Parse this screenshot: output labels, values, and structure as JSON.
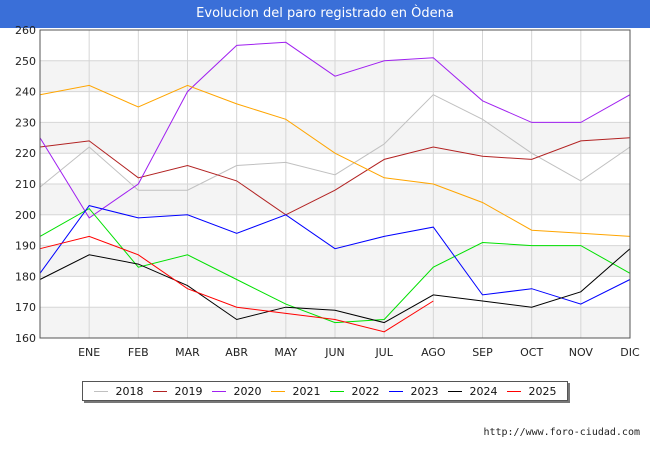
{
  "title": "Evolucion del paro registrado en Òdena",
  "footer_url": "http://www.foro-ciudad.com",
  "chart_data": {
    "type": "line",
    "categories": [
      "",
      "ENE",
      "FEB",
      "MAR",
      "ABR",
      "MAY",
      "JUN",
      "JUL",
      "AGO",
      "SEP",
      "OCT",
      "NOV",
      "DIC"
    ],
    "ylim": [
      160,
      260
    ],
    "yticks": [
      160,
      170,
      180,
      190,
      200,
      210,
      220,
      230,
      240,
      250,
      260
    ],
    "grid": true,
    "legend_position": "bottom",
    "series": [
      {
        "name": "2018",
        "color": "#c0c0c0",
        "values": [
          209,
          222,
          208,
          208,
          216,
          217,
          213,
          223,
          239,
          231,
          220,
          211,
          222
        ]
      },
      {
        "name": "2019",
        "color": "#b22222",
        "values": [
          222,
          224,
          212,
          216,
          211,
          200,
          208,
          218,
          222,
          219,
          218,
          224,
          225
        ]
      },
      {
        "name": "2020",
        "color": "#a020f0",
        "values": [
          225,
          199,
          210,
          240,
          255,
          256,
          245,
          250,
          251,
          237,
          230,
          230,
          239
        ]
      },
      {
        "name": "2021",
        "color": "#ffa500",
        "values": [
          239,
          242,
          235,
          242,
          236,
          231,
          220,
          212,
          210,
          204,
          195,
          194,
          193
        ]
      },
      {
        "name": "2022",
        "color": "#00e000",
        "values": [
          193,
          202,
          183,
          187,
          179,
          171,
          165,
          166,
          183,
          191,
          190,
          190,
          181
        ]
      },
      {
        "name": "2023",
        "color": "#0000ff",
        "values": [
          181,
          203,
          199,
          200,
          194,
          200,
          189,
          193,
          196,
          174,
          176,
          171,
          179
        ]
      },
      {
        "name": "2024",
        "color": "#000000",
        "values": [
          179,
          187,
          184,
          177,
          166,
          170,
          169,
          165,
          174,
          172,
          170,
          175,
          189
        ]
      },
      {
        "name": "2025",
        "color": "#ff0000",
        "values": [
          189,
          193,
          187,
          176,
          170,
          168,
          166,
          162,
          172,
          null,
          null,
          null,
          null
        ]
      }
    ]
  }
}
